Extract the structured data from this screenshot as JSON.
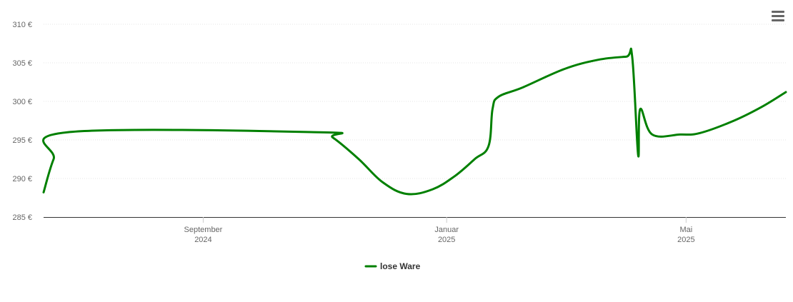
{
  "chart_data": {
    "type": "line",
    "y_unit_suffix": " €",
    "ylim": [
      285,
      310
    ],
    "y_ticks": [
      285,
      290,
      295,
      300,
      305,
      310
    ],
    "y_tick_labels": [
      "285 €",
      "290 €",
      "295 €",
      "300 €",
      "305 €",
      "310 €"
    ],
    "xlim": [
      "2024-06-13",
      "2025-06-20"
    ],
    "x_ticks": [
      {
        "date": "2024-09-01",
        "label_top": "September",
        "label_bottom": "2024"
      },
      {
        "date": "2025-01-01",
        "label_top": "Januar",
        "label_bottom": "2025"
      },
      {
        "date": "2025-05-01",
        "label_top": "Mai",
        "label_bottom": "2025"
      }
    ],
    "grid": "horizontal",
    "legend": "bottom-center",
    "series": [
      {
        "name": "lose Ware",
        "color": "#008000",
        "points": [
          [
            "2024-06-13",
            288.2
          ],
          [
            "2024-06-18",
            292.5
          ],
          [
            "2024-06-25",
            296.0
          ],
          [
            "2024-10-29",
            296.0
          ],
          [
            "2024-11-05",
            295.3
          ],
          [
            "2024-11-18",
            292.5
          ],
          [
            "2024-11-30",
            289.5
          ],
          [
            "2024-12-12",
            288.0
          ],
          [
            "2024-12-25",
            288.6
          ],
          [
            "2025-01-05",
            290.3
          ],
          [
            "2025-01-15",
            292.5
          ],
          [
            "2025-01-22",
            294.2
          ],
          [
            "2025-01-24",
            299.0
          ],
          [
            "2025-01-27",
            300.6
          ],
          [
            "2025-02-08",
            301.8
          ],
          [
            "2025-03-01",
            304.2
          ],
          [
            "2025-03-18",
            305.4
          ],
          [
            "2025-04-01",
            305.8
          ],
          [
            "2025-04-04",
            305.8
          ],
          [
            "2025-04-07",
            293.0
          ],
          [
            "2025-04-08",
            299.0
          ],
          [
            "2025-04-14",
            295.7
          ],
          [
            "2025-04-28",
            295.7
          ],
          [
            "2025-05-08",
            295.9
          ],
          [
            "2025-05-25",
            297.5
          ],
          [
            "2025-06-08",
            299.3
          ],
          [
            "2025-06-20",
            301.2
          ]
        ]
      }
    ]
  },
  "toolbar": {
    "menu_icon": "hamburger-menu-icon"
  }
}
